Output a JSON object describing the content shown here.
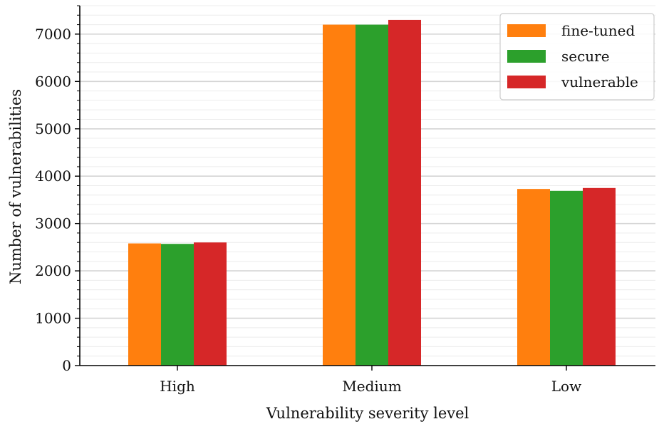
{
  "chart_data": {
    "type": "bar",
    "categories": [
      "High",
      "Medium",
      "Low"
    ],
    "series": [
      {
        "name": "fine-tuned",
        "values": [
          2580,
          7200,
          3730
        ],
        "color": "#ff7f0e"
      },
      {
        "name": "secure",
        "values": [
          2570,
          7200,
          3690
        ],
        "color": "#2ca02c"
      },
      {
        "name": "vulnerable",
        "values": [
          2600,
          7300,
          3750
        ],
        "color": "#d62728"
      }
    ],
    "xlabel": "Vulnerability severity level",
    "ylabel": "Number of vulnerabilities",
    "ylim": [
      0,
      7600
    ],
    "yticks": [
      0,
      1000,
      2000,
      3000,
      4000,
      5000,
      6000,
      7000
    ],
    "grid": "horizontal",
    "legend": "top-right"
  }
}
